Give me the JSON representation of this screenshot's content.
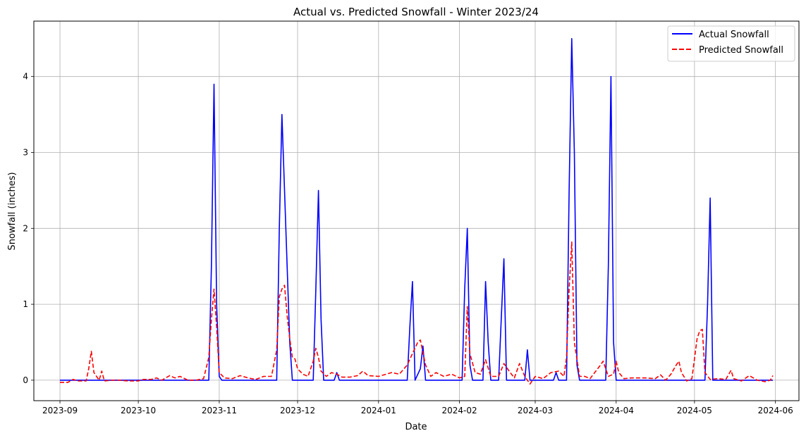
{
  "chart_data": {
    "type": "line",
    "title": "Actual vs. Predicted Snowfall - Winter 2023/24",
    "xlabel": "Date",
    "ylabel": "Snowfall (inches)",
    "x_ticks": [
      "2023-09",
      "2023-10",
      "2023-11",
      "2023-12",
      "2024-01",
      "2024-02",
      "2024-03",
      "2024-04",
      "2024-05",
      "2024-06"
    ],
    "y_ticks": [
      "0",
      "1",
      "2",
      "3",
      "4"
    ],
    "xlim": [
      "2023-08-22",
      "2024-06-10"
    ],
    "ylim": [
      -0.27,
      4.73
    ],
    "grid": true,
    "legend_position": "top-right",
    "series": [
      {
        "name": "Actual Snowfall",
        "color": "#0000ff",
        "style": "solid",
        "points": [
          [
            "2023-09-01",
            0
          ],
          [
            "2023-10-28",
            0
          ],
          [
            "2023-10-29",
            1.5
          ],
          [
            "2023-10-30",
            3.9
          ],
          [
            "2023-10-31",
            1.0
          ],
          [
            "2023-11-01",
            0.05
          ],
          [
            "2023-11-02",
            0
          ],
          [
            "2023-11-23",
            0
          ],
          [
            "2023-11-24",
            2.0
          ],
          [
            "2023-11-25",
            3.5
          ],
          [
            "2023-11-26",
            2.5
          ],
          [
            "2023-11-27",
            1.5
          ],
          [
            "2023-11-28",
            0.5
          ],
          [
            "2023-11-29",
            0
          ],
          [
            "2023-12-07",
            0
          ],
          [
            "2023-12-08",
            1.2
          ],
          [
            "2023-12-09",
            2.5
          ],
          [
            "2023-12-10",
            0.8
          ],
          [
            "2023-12-11",
            0
          ],
          [
            "2023-12-15",
            0
          ],
          [
            "2023-12-16",
            0.1
          ],
          [
            "2023-12-17",
            0
          ],
          [
            "2024-01-12",
            0
          ],
          [
            "2024-01-13",
            0.7
          ],
          [
            "2024-01-14",
            1.3
          ],
          [
            "2024-01-15",
            0
          ],
          [
            "2024-01-17",
            0.15
          ],
          [
            "2024-01-18",
            0.45
          ],
          [
            "2024-01-19",
            0
          ],
          [
            "2024-02-02",
            0
          ],
          [
            "2024-02-03",
            1.2
          ],
          [
            "2024-02-04",
            2.0
          ],
          [
            "2024-02-05",
            0.2
          ],
          [
            "2024-02-06",
            0
          ],
          [
            "2024-02-10",
            0
          ],
          [
            "2024-02-11",
            1.3
          ],
          [
            "2024-02-12",
            0.5
          ],
          [
            "2024-02-13",
            0
          ],
          [
            "2024-02-16",
            0
          ],
          [
            "2024-02-17",
            0.8
          ],
          [
            "2024-02-18",
            1.6
          ],
          [
            "2024-02-19",
            0
          ],
          [
            "2024-02-26",
            0
          ],
          [
            "2024-02-27",
            0.4
          ],
          [
            "2024-02-28",
            0
          ],
          [
            "2024-03-08",
            0
          ],
          [
            "2024-03-09",
            0.1
          ],
          [
            "2024-03-10",
            0
          ],
          [
            "2024-03-13",
            0
          ],
          [
            "2024-03-14",
            2.5
          ],
          [
            "2024-03-15",
            4.5
          ],
          [
            "2024-03-16",
            3.0
          ],
          [
            "2024-03-17",
            0.2
          ],
          [
            "2024-03-18",
            0
          ],
          [
            "2024-03-28",
            0
          ],
          [
            "2024-03-29",
            1.5
          ],
          [
            "2024-03-30",
            4.0
          ],
          [
            "2024-03-31",
            0.5
          ],
          [
            "2024-04-01",
            0
          ],
          [
            "2024-05-05",
            0
          ],
          [
            "2024-05-06",
            1.0
          ],
          [
            "2024-05-07",
            2.4
          ],
          [
            "2024-05-08",
            0
          ],
          [
            "2024-05-31",
            0
          ]
        ]
      },
      {
        "name": "Predicted Snowfall",
        "color": "#ff0000",
        "style": "dashed",
        "points": [
          [
            "2023-09-01",
            -0.03
          ],
          [
            "2023-09-04",
            -0.03
          ],
          [
            "2023-09-06",
            0.01
          ],
          [
            "2023-09-08",
            -0.01
          ],
          [
            "2023-09-11",
            -0.01
          ],
          [
            "2023-09-12",
            0.15
          ],
          [
            "2023-09-13",
            0.38
          ],
          [
            "2023-09-14",
            0.1
          ],
          [
            "2023-09-16",
            0
          ],
          [
            "2023-09-17",
            0.12
          ],
          [
            "2023-09-18",
            -0.01
          ],
          [
            "2023-09-21",
            0
          ],
          [
            "2023-09-24",
            0
          ],
          [
            "2023-09-27",
            -0.01
          ],
          [
            "2023-10-01",
            -0.01
          ],
          [
            "2023-10-03",
            0.01
          ],
          [
            "2023-10-06",
            0.01
          ],
          [
            "2023-10-08",
            0.03
          ],
          [
            "2023-10-10",
            0
          ],
          [
            "2023-10-13",
            0.06
          ],
          [
            "2023-10-15",
            0.03
          ],
          [
            "2023-10-17",
            0.05
          ],
          [
            "2023-10-20",
            0
          ],
          [
            "2023-10-23",
            0
          ],
          [
            "2023-10-26",
            0.02
          ],
          [
            "2023-10-28",
            0.3
          ],
          [
            "2023-10-29",
            0.8
          ],
          [
            "2023-10-30",
            1.2
          ],
          [
            "2023-10-31",
            0.7
          ],
          [
            "2023-11-01",
            0.1
          ],
          [
            "2023-11-03",
            0.03
          ],
          [
            "2023-11-06",
            0.02
          ],
          [
            "2023-11-09",
            0.06
          ],
          [
            "2023-11-12",
            0.03
          ],
          [
            "2023-11-15",
            0.01
          ],
          [
            "2023-11-18",
            0.05
          ],
          [
            "2023-11-21",
            0.05
          ],
          [
            "2023-11-23",
            0.4
          ],
          [
            "2023-11-24",
            1.1
          ],
          [
            "2023-11-25",
            1.2
          ],
          [
            "2023-11-26",
            1.25
          ],
          [
            "2023-11-27",
            0.85
          ],
          [
            "2023-11-28",
            0.55
          ],
          [
            "2023-11-29",
            0.3
          ],
          [
            "2023-11-30",
            0.28
          ],
          [
            "2023-12-01",
            0.15
          ],
          [
            "2023-12-03",
            0.08
          ],
          [
            "2023-12-05",
            0.05
          ],
          [
            "2023-12-07",
            0.25
          ],
          [
            "2023-12-08",
            0.42
          ],
          [
            "2023-12-09",
            0.3
          ],
          [
            "2023-12-10",
            0.12
          ],
          [
            "2023-12-12",
            0.05
          ],
          [
            "2023-12-14",
            0.1
          ],
          [
            "2023-12-16",
            0.08
          ],
          [
            "2023-12-18",
            0.04
          ],
          [
            "2023-12-21",
            0.04
          ],
          [
            "2023-12-24",
            0.06
          ],
          [
            "2023-12-26",
            0.12
          ],
          [
            "2023-12-28",
            0.06
          ],
          [
            "2024-01-01",
            0.05
          ],
          [
            "2024-01-04",
            0.08
          ],
          [
            "2024-01-06",
            0.1
          ],
          [
            "2024-01-09",
            0.08
          ],
          [
            "2024-01-12",
            0.2
          ],
          [
            "2024-01-14",
            0.35
          ],
          [
            "2024-01-16",
            0.5
          ],
          [
            "2024-01-17",
            0.53
          ],
          [
            "2024-01-19",
            0.2
          ],
          [
            "2024-01-21",
            0.05
          ],
          [
            "2024-01-23",
            0.1
          ],
          [
            "2024-01-26",
            0.05
          ],
          [
            "2024-01-29",
            0.08
          ],
          [
            "2024-02-01",
            0.03
          ],
          [
            "2024-02-03",
            0.05
          ],
          [
            "2024-02-04",
            0.97
          ],
          [
            "2024-02-05",
            0.35
          ],
          [
            "2024-02-07",
            0.1
          ],
          [
            "2024-02-09",
            0.08
          ],
          [
            "2024-02-11",
            0.27
          ],
          [
            "2024-02-13",
            0.05
          ],
          [
            "2024-02-16",
            0.05
          ],
          [
            "2024-02-18",
            0.22
          ],
          [
            "2024-02-20",
            0.12
          ],
          [
            "2024-02-22",
            0.03
          ],
          [
            "2024-02-24",
            0.22
          ],
          [
            "2024-02-26",
            0.05
          ],
          [
            "2024-02-28",
            -0.05
          ],
          [
            "2024-03-01",
            0.05
          ],
          [
            "2024-03-04",
            0.02
          ],
          [
            "2024-03-07",
            0.1
          ],
          [
            "2024-03-10",
            0.12
          ],
          [
            "2024-03-12",
            0.05
          ],
          [
            "2024-03-13",
            0.3
          ],
          [
            "2024-03-14",
            1.2
          ],
          [
            "2024-03-15",
            1.82
          ],
          [
            "2024-03-16",
            0.5
          ],
          [
            "2024-03-18",
            0.05
          ],
          [
            "2024-03-20",
            0.05
          ],
          [
            "2024-03-22",
            0.02
          ],
          [
            "2024-03-26",
            0.2
          ],
          [
            "2024-03-27",
            0.25
          ],
          [
            "2024-03-29",
            0.05
          ],
          [
            "2024-03-31",
            0.08
          ],
          [
            "2024-04-01",
            0.25
          ],
          [
            "2024-04-02",
            0.1
          ],
          [
            "2024-04-04",
            0.02
          ],
          [
            "2024-04-07",
            0.03
          ],
          [
            "2024-04-12",
            0.03
          ],
          [
            "2024-04-16",
            0.02
          ],
          [
            "2024-04-18",
            0.07
          ],
          [
            "2024-04-20",
            0
          ],
          [
            "2024-04-22",
            0.08
          ],
          [
            "2024-04-24",
            0.2
          ],
          [
            "2024-04-25",
            0.25
          ],
          [
            "2024-04-26",
            0.1
          ],
          [
            "2024-04-28",
            -0.01
          ],
          [
            "2024-04-30",
            0.02
          ],
          [
            "2024-05-02",
            0.55
          ],
          [
            "2024-05-03",
            0.65
          ],
          [
            "2024-05-04",
            0.67
          ],
          [
            "2024-05-05",
            0.1
          ],
          [
            "2024-05-07",
            0.01
          ],
          [
            "2024-05-10",
            0.02
          ],
          [
            "2024-05-13",
            0.01
          ],
          [
            "2024-05-15",
            0.13
          ],
          [
            "2024-05-16",
            0.02
          ],
          [
            "2024-05-19",
            -0.01
          ],
          [
            "2024-05-22",
            0.06
          ],
          [
            "2024-05-25",
            0
          ],
          [
            "2024-05-28",
            -0.02
          ],
          [
            "2024-05-30",
            0
          ],
          [
            "2024-05-31",
            0.06
          ]
        ]
      }
    ]
  }
}
